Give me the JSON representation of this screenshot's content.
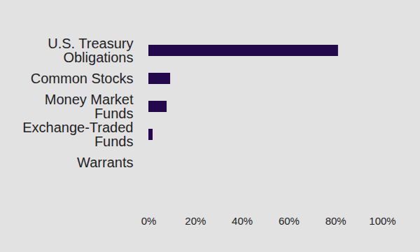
{
  "chart_data": {
    "type": "bar",
    "orientation": "horizontal",
    "categories": [
      "U.S. Treasury Obligations",
      "Common Stocks",
      "Money Market Funds",
      "Exchange-Traded Funds",
      "Warrants"
    ],
    "values": [
      81.1,
      9.3,
      7.8,
      1.8,
      0
    ],
    "color": "#23094b",
    "xlim": [
      0,
      100
    ],
    "xticks": [
      {
        "value": 0,
        "label": "0%"
      },
      {
        "value": 20,
        "label": "20%"
      },
      {
        "value": 40,
        "label": "40%"
      },
      {
        "value": 60,
        "label": "60%"
      },
      {
        "value": 80,
        "label": "80%"
      },
      {
        "value": 100,
        "label": "100%"
      }
    ],
    "grid": true
  }
}
